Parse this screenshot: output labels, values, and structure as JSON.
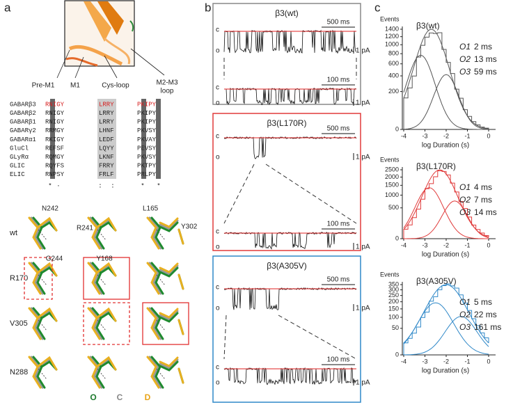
{
  "panel_a": {
    "label": "a",
    "structure_labels": [
      "Pre-M1",
      "M1",
      "Cys-loop",
      "M2-M3",
      "loop"
    ],
    "alignment": {
      "names": [
        "GABARβ3",
        "GABARβ2",
        "GABARβ1",
        "GABARγ2",
        "GABARα1",
        "GluCl",
        "GLyRα",
        "GLIC",
        "ELIC"
      ],
      "pre_m1": [
        "RNIGY",
        "RNIGY",
        "RNIGY",
        "RRMGY",
        "RKIGY",
        "REFSF",
        "RQMGY",
        "RQYFS",
        "RNPSY"
      ],
      "cys_loop": [
        "LRRY",
        "LRRY",
        "LRRY",
        "LHNF",
        "LEDF",
        "LQYY",
        "LKNF",
        "FRRY",
        "FRLF"
      ],
      "m2m3": [
        "PKIPY",
        "PKIPY",
        "PKIPY",
        "PKVSY",
        "PKVAY",
        "PEVSY",
        "PKVSY",
        "PKTPY",
        "PRLPY"
      ],
      "conservation": [
        "*",
        "·",
        ":",
        ":",
        "*",
        "*"
      ]
    },
    "rows": [
      "wt",
      "R170",
      "V305",
      "N288"
    ],
    "residues": [
      "N242",
      "G244",
      "R241",
      "Y168",
      "L165",
      "Y302"
    ],
    "states": [
      "O",
      "C",
      "D"
    ]
  },
  "panel_b": {
    "label": "b",
    "closed": "c",
    "open": "o",
    "traces": [
      {
        "title": "β3(wt)",
        "scale_top": "500 ms",
        "scale_bottom": "100 ms",
        "amp": "1 pA"
      },
      {
        "title": "β3(L170R)",
        "scale_top": "500 ms",
        "scale_bottom": "100 ms",
        "amp": "1 pA"
      },
      {
        "title": "β3(A305V)",
        "scale_top": "500 ms",
        "scale_bottom": "100 ms",
        "amp": "1 pA"
      }
    ]
  },
  "panel_c": {
    "label": "c",
    "y_label": "Events",
    "x_label": "log Duration (s)",
    "xticks": [
      -4,
      -3,
      -2,
      -1,
      0
    ],
    "hists": [
      {
        "title": "β3(wt)",
        "color": "#555555",
        "yticks": [
          0,
          200,
          400,
          600,
          800,
          1000,
          1200,
          1400
        ],
        "components": [
          {
            "name": "O1",
            "time": "2 ms"
          },
          {
            "name": "O2",
            "time": "13 ms"
          },
          {
            "name": "O3",
            "time": "59 ms"
          }
        ]
      },
      {
        "title": "β3(L170R)",
        "color": "#e03a3a",
        "yticks": [
          0,
          500,
          1000,
          1500,
          2000,
          2500
        ],
        "components": [
          {
            "name": "O1",
            "time": "4 ms"
          },
          {
            "name": "O2",
            "time": "7 ms"
          },
          {
            "name": "O3",
            "time": "14 ms"
          }
        ]
      },
      {
        "title": "β3(A305V)",
        "color": "#2f88c8",
        "yticks": [
          0,
          50,
          100,
          150,
          200,
          250,
          300,
          350
        ],
        "components": [
          {
            "name": "O1",
            "time": "5 ms"
          },
          {
            "name": "O2",
            "time": "22 ms"
          },
          {
            "name": "O3",
            "time": "161 ms"
          }
        ]
      }
    ]
  }
}
